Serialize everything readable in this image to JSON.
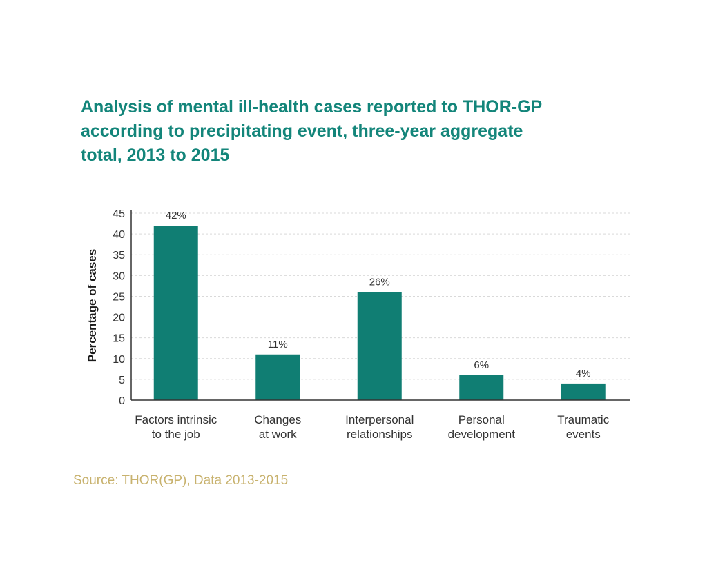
{
  "chart_data": {
    "type": "bar",
    "title_lines": [
      "Analysis of mental ill-health cases reported to THOR-GP",
      "according to precipitating event, three-year aggregate",
      "total, 2013 to 2015"
    ],
    "categories": [
      [
        "Factors intrinsic",
        "to the job"
      ],
      [
        "Changes",
        "at work"
      ],
      [
        "Interpersonal",
        "relationships"
      ],
      [
        "Personal",
        "development"
      ],
      [
        "Traumatic",
        "events"
      ]
    ],
    "values": [
      42,
      11,
      26,
      6,
      4
    ],
    "data_labels": [
      "42%",
      "11%",
      "26%",
      "6%",
      "4%"
    ],
    "xlabel": "",
    "ylabel": "Percentage of cases",
    "ylim": [
      0,
      45
    ],
    "yticks": [
      "0",
      "5",
      "10",
      "15",
      "20",
      "25",
      "30",
      "35",
      "40",
      "45"
    ],
    "grid": true,
    "legend": "none",
    "bar_color": "#107e73"
  },
  "colors": {
    "title": "#13857a",
    "source": "#c8b26e",
    "grid": "#d9d9d9",
    "axis": "#333333"
  },
  "source_text": "Source: THOR(GP), Data 2013-2015"
}
